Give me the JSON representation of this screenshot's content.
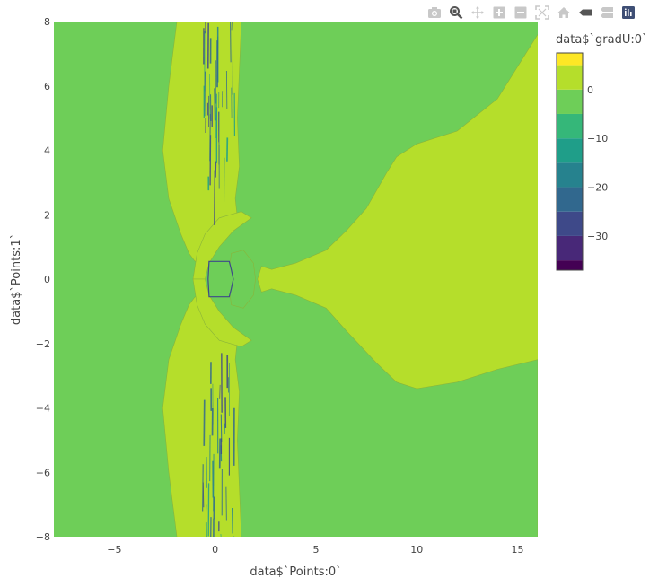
{
  "modebar": {
    "buttons": [
      {
        "name": "camera-icon",
        "title": "Download plot as a png"
      },
      {
        "name": "zoom-icon",
        "title": "Zoom"
      },
      {
        "name": "pan-icon",
        "title": "Pan"
      },
      {
        "name": "zoom-in-icon",
        "title": "Zoom in"
      },
      {
        "name": "zoom-out-icon",
        "title": "Zoom out"
      },
      {
        "name": "autoscale-icon",
        "title": "Autoscale"
      },
      {
        "name": "home-icon",
        "title": "Reset axes"
      },
      {
        "name": "hover-closest-icon",
        "title": "Show closest data on hover"
      },
      {
        "name": "hover-compare-icon",
        "title": "Compare data on hover"
      },
      {
        "name": "plotly-logo-icon",
        "title": "Produced with Plotly"
      }
    ],
    "active": "zoom-icon"
  },
  "chart_data": {
    "type": "contour",
    "xlabel": "data$`Points:0`",
    "ylabel": "data$`Points:1`",
    "xlim": [
      -8,
      16
    ],
    "ylim": [
      -8,
      8
    ],
    "xticks": [
      -5,
      0,
      5,
      10,
      15
    ],
    "yticks": [
      -8,
      -6,
      -4,
      -2,
      0,
      2,
      4,
      6,
      8
    ],
    "colorbar": {
      "title": "data$`gradU:0`",
      "ticks": [
        0,
        -10,
        -20,
        -30
      ],
      "range": [
        -37,
        7.5
      ],
      "levels": [
        -37,
        -35,
        -30,
        -25,
        -20,
        -15,
        -10,
        -5,
        0,
        5,
        7.5
      ],
      "colors": [
        "#440154",
        "#482878",
        "#3e4989",
        "#31688e",
        "#26828e",
        "#1f9e89",
        "#35b779",
        "#6ece58",
        "#b5de2b",
        "#fde725"
      ]
    },
    "background_level_color": "#6ece58",
    "highlight_level_color": "#b5de2b",
    "dark_level_colors": [
      "#3e4989",
      "#31688e",
      "#26828e",
      "#1f9e89"
    ],
    "regions": {
      "wake": [
        [
          16,
          -2.5
        ],
        [
          14,
          -2.8
        ],
        [
          12,
          -3.2
        ],
        [
          10,
          -3.4
        ],
        [
          9,
          -3.2
        ],
        [
          8,
          -2.6
        ],
        [
          6.5,
          -1.6
        ],
        [
          5.5,
          -0.9
        ],
        [
          4,
          -0.5
        ],
        [
          2.8,
          -0.3
        ],
        [
          2.3,
          -0.4
        ],
        [
          2.1,
          0
        ],
        [
          2.3,
          0.4
        ],
        [
          2.8,
          0.3
        ],
        [
          4,
          0.5
        ],
        [
          5.5,
          0.9
        ],
        [
          6.5,
          1.5
        ],
        [
          7.5,
          2.2
        ],
        [
          8.5,
          3.3
        ],
        [
          9,
          3.8
        ],
        [
          10,
          4.2
        ],
        [
          12,
          4.6
        ],
        [
          14,
          5.6
        ],
        [
          16,
          7.6
        ]
      ],
      "upper_band": [
        [
          -1.9,
          8
        ],
        [
          -2.3,
          6
        ],
        [
          -2.6,
          4
        ],
        [
          -2.3,
          2.5
        ],
        [
          -1.7,
          1.4
        ],
        [
          -1.3,
          0.8
        ],
        [
          -1,
          0.55
        ],
        [
          -0.1,
          0.8
        ],
        [
          0.6,
          1.3
        ],
        [
          1.1,
          1.9
        ],
        [
          1,
          2.5
        ],
        [
          1.2,
          3.5
        ],
        [
          1.1,
          5
        ],
        [
          1.3,
          8
        ]
      ],
      "lower_band": [
        [
          -1.9,
          -8
        ],
        [
          -2.3,
          -6
        ],
        [
          -2.6,
          -4
        ],
        [
          -2.3,
          -2.5
        ],
        [
          -1.7,
          -1.4
        ],
        [
          -1.3,
          -0.8
        ],
        [
          -1,
          -0.55
        ],
        [
          -0.1,
          -0.8
        ],
        [
          0.6,
          -1.3
        ],
        [
          1.1,
          -1.9
        ],
        [
          1,
          -2.5
        ],
        [
          1.2,
          -3.5
        ],
        [
          1.1,
          -5
        ],
        [
          1.3,
          -8
        ]
      ],
      "arc_upper": [
        [
          -1.1,
          0
        ],
        [
          -0.9,
          0.8
        ],
        [
          -0.5,
          1.4
        ],
        [
          0.2,
          1.9
        ],
        [
          1.3,
          2.1
        ],
        [
          1.8,
          1.9
        ],
        [
          0.9,
          1.5
        ],
        [
          0.2,
          1.0
        ],
        [
          -0.3,
          0.5
        ],
        [
          -0.5,
          0
        ]
      ],
      "arc_lower": [
        [
          -1.1,
          0
        ],
        [
          -0.9,
          -0.8
        ],
        [
          -0.5,
          -1.4
        ],
        [
          0.2,
          -1.9
        ],
        [
          1.3,
          -2.1
        ],
        [
          1.8,
          -1.9
        ],
        [
          0.9,
          -1.5
        ],
        [
          0.2,
          -1.0
        ],
        [
          -0.3,
          -0.5
        ],
        [
          -0.5,
          0
        ]
      ],
      "body": [
        [
          -0.3,
          0.55
        ],
        [
          0.7,
          0.55
        ],
        [
          0.8,
          0.3
        ],
        [
          0.9,
          0
        ],
        [
          0.8,
          -0.3
        ],
        [
          0.7,
          -0.55
        ],
        [
          -0.3,
          -0.55
        ],
        [
          -0.35,
          0
        ]
      ],
      "blob_right": [
        [
          0.8,
          0.8
        ],
        [
          1.4,
          0.9
        ],
        [
          1.9,
          0.5
        ],
        [
          2.0,
          0
        ],
        [
          1.9,
          -0.5
        ],
        [
          1.4,
          -0.9
        ],
        [
          0.8,
          -0.8
        ],
        [
          0.65,
          0
        ]
      ]
    }
  }
}
